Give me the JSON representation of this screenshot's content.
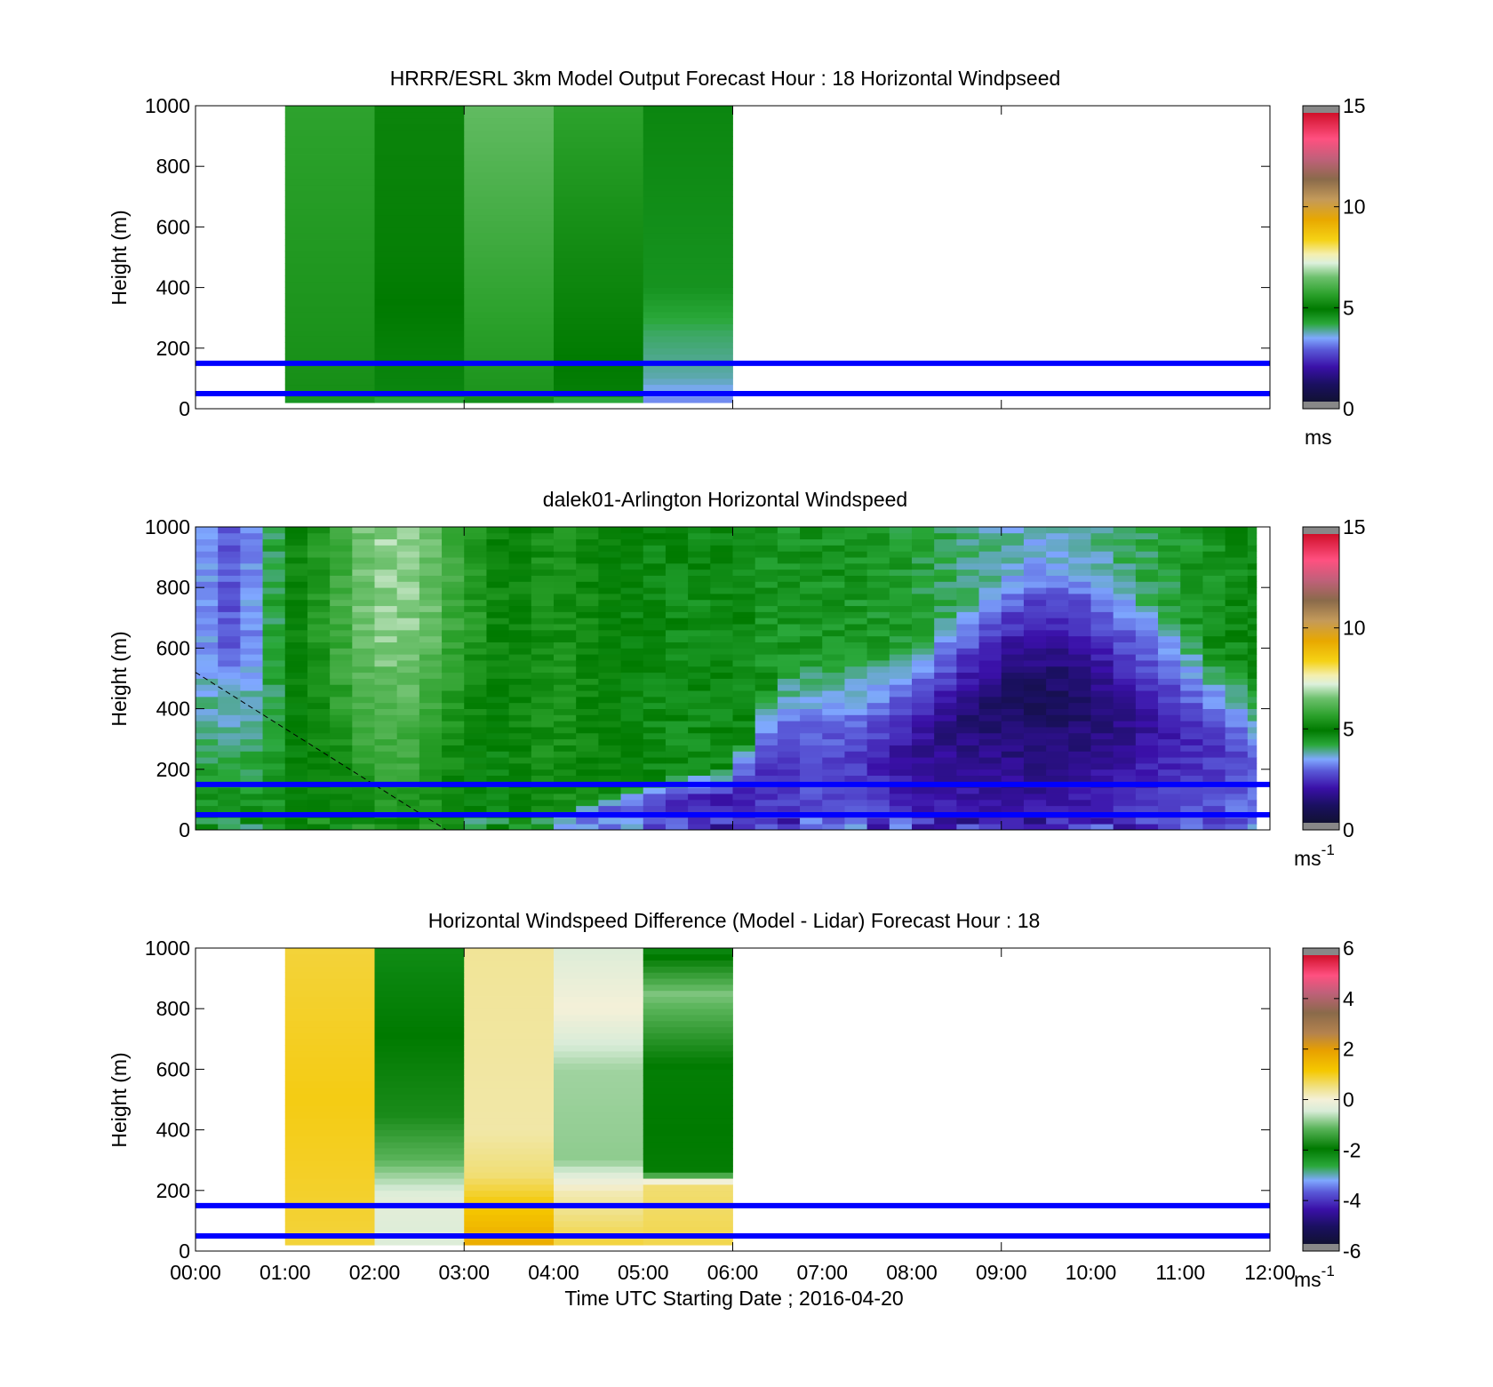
{
  "figure": {
    "xlabel": "Time UTC  Starting Date ; 2016-04-20",
    "x_ticks": [
      "00:00",
      "01:00",
      "02:00",
      "03:00",
      "04:00",
      "05:00",
      "06:00",
      "07:00",
      "08:00",
      "09:00",
      "10:00",
      "11:00",
      "12:00"
    ],
    "reference_line_color": "#0000ff"
  },
  "chart_data": [
    {
      "type": "heatmap",
      "title": "HRRR/ESRL 3km Model Output   Forecast Hour : 18 Horizontal Windpseed",
      "ylabel": "Height (m)",
      "xlim_hours": [
        0,
        12
      ],
      "ylim": [
        0,
        1000
      ],
      "y_ticks": [
        0,
        200,
        400,
        600,
        800,
        1000
      ],
      "colorbar": {
        "ticks": [
          0,
          5,
          10,
          15
        ],
        "range": [
          0,
          15
        ],
        "unit": "ms",
        "unit_sup": ""
      },
      "reference_lines_m": [
        50,
        150
      ],
      "columns": [
        {
          "start_hour": 1,
          "end_hour": 2,
          "profile": [
            [
              20,
              3.5
            ],
            [
              40,
              5.2
            ],
            [
              1000,
              5.6
            ]
          ]
        },
        {
          "start_hour": 2,
          "end_hour": 3,
          "profile": [
            [
              20,
              3.6
            ],
            [
              40,
              4.6
            ],
            [
              500,
              4.9
            ],
            [
              1000,
              5.0
            ]
          ]
        },
        {
          "start_hour": 3,
          "end_hour": 4,
          "profile": [
            [
              20,
              3.6
            ],
            [
              40,
              5.3
            ],
            [
              1000,
              6.3
            ]
          ]
        },
        {
          "start_hour": 4,
          "end_hour": 5,
          "profile": [
            [
              20,
              3.4
            ],
            [
              40,
              4.7
            ],
            [
              600,
              5.2
            ],
            [
              1000,
              5.6
            ]
          ]
        },
        {
          "start_hour": 5,
          "end_hour": 6,
          "profile": [
            [
              20,
              3.0
            ],
            [
              100,
              3.6
            ],
            [
              250,
              3.9
            ],
            [
              400,
              4.4
            ],
            [
              1000,
              4.6
            ]
          ]
        }
      ]
    },
    {
      "type": "heatmap",
      "title": "dalek01-Arlington  Horizontal Windspeed",
      "ylabel": "Height (m)",
      "xlim_hours": [
        0,
        12
      ],
      "ylim": [
        0,
        1000
      ],
      "y_ticks": [
        0,
        200,
        400,
        600,
        800,
        1000
      ],
      "colorbar": {
        "ticks": [
          0,
          5,
          10,
          15
        ],
        "range": [
          0,
          15
        ],
        "unit": "ms",
        "unit_sup": "-1"
      },
      "reference_lines_m": [
        50,
        150
      ],
      "data_end_hour": 11.85,
      "time_step_hours": 0.25,
      "height_step_m": 20,
      "keyframes": [
        {
          "hour": 0.0,
          "surface": 4.6,
          "low_top_m": 600,
          "low_min": 2.8,
          "low_core_m": 820,
          "upper": 3.4
        },
        {
          "hour": 0.4,
          "surface": 4.6,
          "low_top_m": 600,
          "low_min": 2.2,
          "low_core_m": 850,
          "upper": 2.6
        },
        {
          "hour": 0.8,
          "surface": 4.5,
          "low_top_m": 720,
          "low_min": 3.2,
          "low_core_m": 820,
          "upper": 3.6
        },
        {
          "hour": 1.0,
          "surface": 4.5,
          "low_top_m": 0,
          "low_min": 4.5,
          "low_core_m": 0,
          "upper": 4.8
        },
        {
          "hour": 1.5,
          "surface": 4.8,
          "low_top_m": 0,
          "low_min": 4.8,
          "low_core_m": 0,
          "upper": 5.6
        },
        {
          "hour": 2.0,
          "surface": 5.0,
          "low_top_m": 0,
          "low_min": 5.0,
          "low_core_m": 0,
          "upper": 6.8
        },
        {
          "hour": 2.5,
          "surface": 5.2,
          "low_top_m": 0,
          "low_min": 5.2,
          "low_core_m": 0,
          "upper": 6.6
        },
        {
          "hour": 3.0,
          "surface": 4.4,
          "low_top_m": 0,
          "low_min": 4.4,
          "low_core_m": 0,
          "upper": 5.6
        },
        {
          "hour": 3.5,
          "surface": 4.2,
          "low_top_m": 0,
          "low_min": 4.2,
          "low_core_m": 0,
          "upper": 4.9
        },
        {
          "hour": 4.0,
          "surface": 3.6,
          "low_top_m": 60,
          "low_min": 3.2,
          "low_core_m": 30,
          "upper": 5.3
        },
        {
          "hour": 4.5,
          "surface": 3.2,
          "low_top_m": 120,
          "low_min": 2.8,
          "low_core_m": 60,
          "upper": 5.0
        },
        {
          "hour": 5.0,
          "surface": 3.0,
          "low_top_m": 160,
          "low_min": 2.4,
          "low_core_m": 80,
          "upper": 4.6
        },
        {
          "hour": 5.5,
          "surface": 2.6,
          "low_top_m": 190,
          "low_min": 2.0,
          "low_core_m": 100,
          "upper": 4.5
        },
        {
          "hour": 6.0,
          "surface": 2.4,
          "low_top_m": 220,
          "low_min": 1.9,
          "low_core_m": 100,
          "upper": 4.6
        },
        {
          "hour": 6.5,
          "surface": 2.4,
          "low_top_m": 520,
          "low_min": 2.2,
          "low_core_m": 200,
          "upper": 4.3
        },
        {
          "hour": 7.0,
          "surface": 2.6,
          "low_top_m": 600,
          "low_min": 2.6,
          "low_core_m": 250,
          "upper": 4.4
        },
        {
          "hour": 7.5,
          "surface": 2.6,
          "low_top_m": 580,
          "low_min": 2.2,
          "low_core_m": 220,
          "upper": 4.3
        },
        {
          "hour": 8.0,
          "surface": 2.2,
          "low_top_m": 620,
          "low_min": 1.6,
          "low_core_m": 250,
          "upper": 4.2
        },
        {
          "hour": 8.5,
          "surface": 2.0,
          "low_top_m": 740,
          "low_min": 1.3,
          "low_core_m": 340,
          "upper": 3.9
        },
        {
          "hour": 9.0,
          "surface": 2.0,
          "low_top_m": 840,
          "low_min": 0.9,
          "low_core_m": 420,
          "upper": 3.6
        },
        {
          "hour": 9.5,
          "surface": 2.0,
          "low_top_m": 900,
          "low_min": 0.7,
          "low_core_m": 420,
          "upper": 3.4
        },
        {
          "hour": 10.0,
          "surface": 2.2,
          "low_top_m": 880,
          "low_min": 1.0,
          "low_core_m": 400,
          "upper": 3.6
        },
        {
          "hour": 10.5,
          "surface": 2.4,
          "low_top_m": 800,
          "low_min": 1.5,
          "low_core_m": 350,
          "upper": 3.9
        },
        {
          "hour": 11.0,
          "surface": 2.6,
          "low_top_m": 700,
          "low_min": 2.0,
          "low_core_m": 300,
          "upper": 4.2
        },
        {
          "hour": 11.5,
          "surface": 2.8,
          "low_top_m": 560,
          "low_min": 2.4,
          "low_core_m": 250,
          "upper": 4.5
        },
        {
          "hour": 11.85,
          "surface": 3.0,
          "low_top_m": 480,
          "low_min": 2.6,
          "low_core_m": 200,
          "upper": 4.6
        }
      ],
      "dashed_line": {
        "from": [
          0.0,
          520
        ],
        "to": [
          2.8,
          0
        ]
      }
    },
    {
      "type": "heatmap",
      "title": "Horizontal Windspeed Difference (Model - Lidar) Forecast Hour : 18",
      "ylabel": "Height (m)",
      "xlim_hours": [
        0,
        12
      ],
      "ylim": [
        0,
        1000
      ],
      "y_ticks": [
        0,
        200,
        400,
        600,
        800,
        1000
      ],
      "colorbar": {
        "ticks": [
          -6,
          -4,
          -2,
          0,
          2,
          4,
          6
        ],
        "range": [
          -6,
          6
        ],
        "unit": "ms",
        "unit_sup": "-1"
      },
      "reference_lines_m": [
        50,
        150
      ],
      "columns": [
        {
          "start_hour": 1,
          "end_hour": 2,
          "profile": [
            [
              20,
              0.9
            ],
            [
              500,
              1.1
            ],
            [
              1000,
              0.9
            ]
          ]
        },
        {
          "start_hour": 2,
          "end_hour": 3,
          "profile": [
            [
              20,
              -0.4
            ],
            [
              180,
              -0.3
            ],
            [
              300,
              -1.2
            ],
            [
              450,
              -1.8
            ],
            [
              1000,
              -2.3
            ]
          ]
        },
        {
          "start_hour": 3,
          "end_hour": 4,
          "profile": [
            [
              20,
              1.8
            ],
            [
              150,
              1.2
            ],
            [
              250,
              0.6
            ],
            [
              400,
              0.3
            ],
            [
              1000,
              0.4
            ]
          ]
        },
        {
          "start_hour": 4,
          "end_hour": 5,
          "profile": [
            [
              20,
              0.9
            ],
            [
              200,
              0.2
            ],
            [
              300,
              -0.9
            ],
            [
              600,
              -0.8
            ],
            [
              800,
              0.0
            ],
            [
              1000,
              -0.4
            ]
          ]
        },
        {
          "start_hour": 5,
          "end_hour": 6,
          "profile": [
            [
              20,
              0.8
            ],
            [
              220,
              0.6
            ],
            [
              260,
              -2.0
            ],
            [
              600,
              -2.1
            ],
            [
              850,
              -1.0
            ],
            [
              1000,
              -2.3
            ]
          ]
        }
      ]
    }
  ]
}
